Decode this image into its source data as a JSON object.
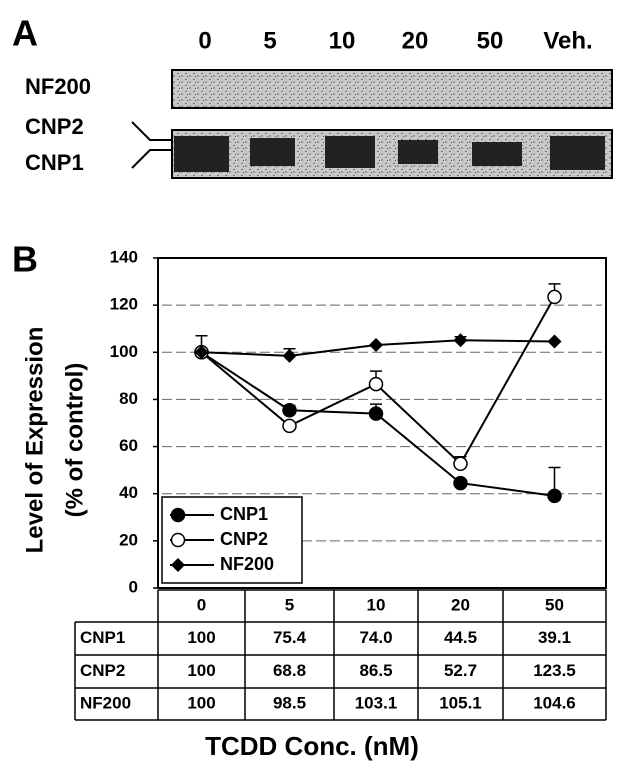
{
  "panel_a": {
    "label": "A",
    "lanes": [
      "0",
      "5",
      "10",
      "20",
      "50",
      "Veh."
    ],
    "rows": [
      "NF200",
      "CNP2",
      "CNP1"
    ]
  },
  "chart_data": {
    "type": "line",
    "panel_label": "B",
    "ylabel": [
      "Level of Expression",
      "(% of control)"
    ],
    "xlabel": "TCDD Conc. (nM)",
    "categories": [
      "0",
      "5",
      "10",
      "20",
      "50"
    ],
    "series": [
      {
        "name": "CNP1",
        "color": "#000000",
        "marker": "filled-circle",
        "values": [
          100,
          75.4,
          74,
          44.5,
          39.1
        ],
        "value_labels": [
          "100",
          "75.4",
          "74.0",
          "44.5",
          "39.1"
        ],
        "errors": [
          7,
          2,
          4,
          null,
          12
        ]
      },
      {
        "name": "CNP2",
        "color": "#000000",
        "marker": "open-circle",
        "values": [
          100,
          68.8,
          86.5,
          52.7,
          123.5
        ],
        "value_labels": [
          "100",
          "68.8",
          "86.5",
          "52.7",
          "123.5"
        ],
        "errors": [
          null,
          null,
          5.5,
          3,
          5.5
        ]
      },
      {
        "name": "NF200",
        "color": "#000000",
        "marker": "diamond",
        "values": [
          100,
          98.5,
          103.1,
          105.1,
          104.6
        ],
        "value_labels": [
          "100",
          "98.5",
          "103.1",
          "105.1",
          "104.6"
        ],
        "errors": [
          null,
          3,
          null,
          1.5,
          null
        ]
      }
    ],
    "ylim": [
      0,
      140
    ],
    "yticks": [
      0,
      20,
      40,
      60,
      80,
      100,
      120,
      140
    ],
    "grid": true,
    "legend": "lower left"
  }
}
